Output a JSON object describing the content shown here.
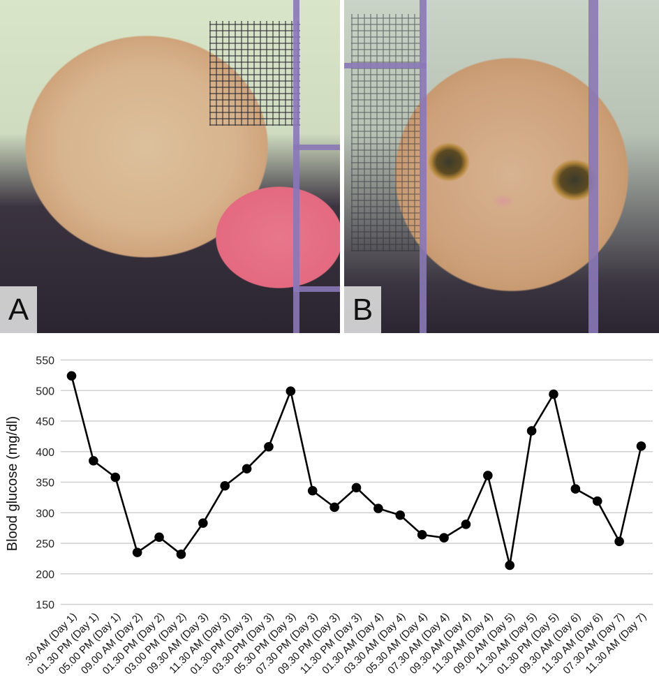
{
  "figure": {
    "panels": [
      {
        "id": "A",
        "label": "A",
        "description": "Long-haired cream Persian cat with head in pink food bowl inside purple wire cage, IV line attached to foreleg"
      },
      {
        "id": "B",
        "label": "B",
        "description": "Close-up of cream Persian cat face with amber eyes behind purple cage bars"
      }
    ]
  },
  "colors": {
    "line": "#000000",
    "marker": "#000000",
    "grid": "#d0d0d0",
    "cage_bar": "#8a78b6",
    "bowl": "#e36a80"
  },
  "chart_data": {
    "type": "line",
    "title": "",
    "xlabel": "",
    "ylabel": "Blood glucose (mg/dl)",
    "ylim": [
      150,
      550
    ],
    "yticks": [
      150,
      200,
      250,
      300,
      350,
      400,
      450,
      500,
      550
    ],
    "grid": true,
    "legend": null,
    "categories": [
      ".30 AM (Day 1)",
      "01.30 PM (Day 1)",
      "05.00 PM (Day 1)",
      "09.00 AM (Day 2)",
      "01.30 PM (Day 2)",
      "03.00 PM (Day 2)",
      "09.30 AM (Day 3)",
      "11.30 AM (Day 3)",
      "01.30 PM (Day 3)",
      "03.30 PM (Day 3)",
      "05.30 PM (Day 3)",
      "07.30 PM (Day 3)",
      "09.30 PM (Day 3)",
      "11.30 PM (Day 3)",
      "01.30 AM (Day 4)",
      "03.30 AM (Day 4)",
      "05.30 AM (Day 4)",
      "07.30 AM (Day 4)",
      "09.30 AM (Day 4)",
      "11.30 AM (Day 4)",
      "09.00 AM (Day 5)",
      "11.30 AM (Day 5)",
      "01.30 PM (Day 5)",
      "09.30 AM (Day 6)",
      "11.30 AM (Day 6)",
      "07.30 AM (Day 7)",
      "11.30 AM (Day 7)"
    ],
    "series": [
      {
        "name": "Blood glucose",
        "values": [
          524,
          385,
          358,
          235,
          260,
          232,
          283,
          344,
          372,
          408,
          499,
          336,
          309,
          341,
          307,
          296,
          264,
          259,
          281,
          361,
          214,
          434,
          494,
          339,
          319,
          253,
          409
        ]
      }
    ]
  }
}
